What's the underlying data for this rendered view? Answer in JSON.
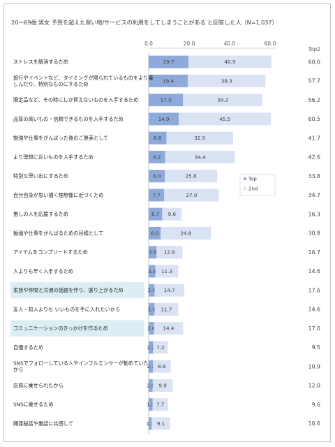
{
  "chart_data": {
    "type": "bar",
    "stacked": true,
    "orientation": "horizontal",
    "title": "20～69歳 男女 予算を超えた買い物/サービスの利用をしてしまうことがある と回答した人（N=1,037）",
    "x_ticks": [
      "0.0",
      "20.0",
      "40.0",
      "60.0"
    ],
    "xlim": [
      0,
      60
    ],
    "total_header": "Top2",
    "categories": [
      "ストレスを解消するため",
      "旅行やイベントなど、タイミングが限られているものをより楽しんだり、特別なものにするため",
      "限定品など、その時にしか買えないものを入手するため",
      "品質の高いもの・信頼できるものを入手するため",
      "勉強や仕事をがんばった後のご褒美として",
      "より理想に近いものを入手するため",
      "特別な思い出にするため",
      "自分自身が思い描く理想像に近づくため",
      "推しの人を応援するため",
      "勉強や仕事をがんばるための目標として",
      "アイテムをコンプリートするため",
      "人よりも早く入手するため",
      "家族や仲間と共通の話題を作り、盛り上がるため",
      "友人・知人よりも いいものを手に入れたいから",
      "コミュニケーションのきっかけを作るため",
      "自慢するため",
      "SNSでフォローしている人やインフルエンサーが勧めていたから",
      "店員に乗せられたから",
      "SNSに載せるため",
      "開発秘話や裏話に共感して"
    ],
    "highlighted_categories": [
      12,
      14
    ],
    "series": [
      {
        "name": "Top",
        "color": "#8eaadb",
        "values": [
          19.7,
          19.4,
          17.0,
          14.9,
          8.8,
          8.2,
          8.0,
          7.7,
          6.7,
          6.0,
          3.9,
          3.3,
          2.9,
          2.9,
          2.6,
          2.2,
          2.1,
          2.0,
          1.9,
          1.5
        ]
      },
      {
        "name": "2nd",
        "color": "#dae3f3",
        "values": [
          40.9,
          38.3,
          39.2,
          45.5,
          32.9,
          34.4,
          25.8,
          27.0,
          9.6,
          24.8,
          12.8,
          11.3,
          14.7,
          11.7,
          14.4,
          7.2,
          8.8,
          9.9,
          7.7,
          9.1
        ]
      }
    ],
    "top2": [
      60.6,
      57.7,
      56.2,
      60.5,
      41.7,
      42.6,
      33.8,
      34.7,
      16.3,
      30.8,
      16.7,
      14.6,
      17.6,
      14.6,
      17.0,
      9.5,
      10.9,
      12.0,
      9.6,
      10.6
    ],
    "legend": [
      "Top",
      "2nd"
    ],
    "legend_position": "right, middle"
  }
}
